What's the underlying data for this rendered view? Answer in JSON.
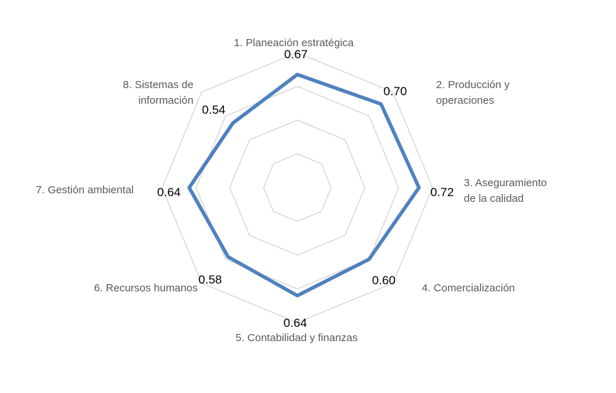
{
  "chart_data": {
    "type": "radar",
    "categories": [
      [
        "1. Planeación estratégica"
      ],
      [
        "2. Producción y",
        "operaciones"
      ],
      [
        "3. Aseguramiento",
        "de la calidad"
      ],
      [
        "4. Comercialización"
      ],
      [
        "5. Contabilidad y finanzas"
      ],
      [
        "6. Recursos humanos"
      ],
      [
        "7. Gestión ambiental"
      ],
      [
        "8. Sistemas de",
        "información"
      ]
    ],
    "values": [
      0.67,
      0.7,
      0.72,
      0.6,
      0.64,
      0.58,
      0.64,
      0.54
    ],
    "value_labels": [
      "0.67",
      "0.70",
      "0.72",
      "0.60",
      "0.64",
      "0.58",
      "0.64",
      "0.54"
    ],
    "rlim": [
      0,
      0.8
    ],
    "gridlines": [
      0.2,
      0.4,
      0.6,
      0.8
    ],
    "grid": true,
    "legend": "none",
    "colors": {
      "series": "#4F81BD",
      "grid": "#D9D9D9",
      "category_text": "#595959",
      "value_text": "#000000"
    }
  }
}
